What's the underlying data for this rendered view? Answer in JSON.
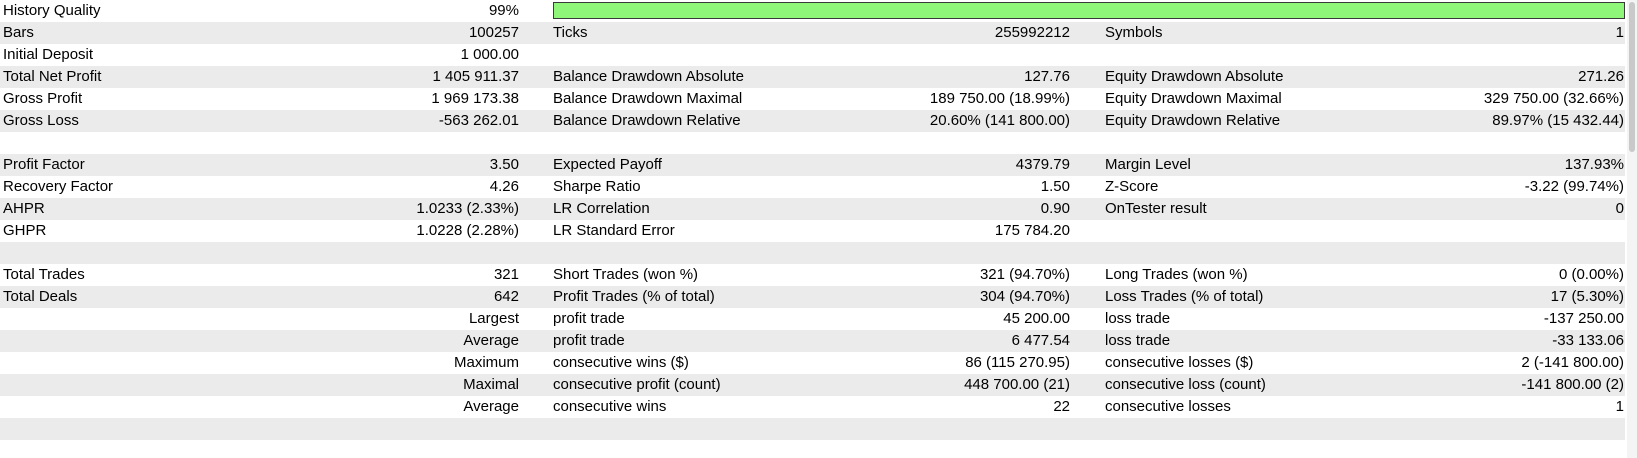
{
  "history_quality": {
    "label": "History Quality",
    "value": "99%",
    "fill_fraction": 0.99,
    "bar_color": "#8ef77a"
  },
  "rows": [
    {
      "label1": "Bars",
      "value1": "100257",
      "label2": "Ticks",
      "value2": "255992212",
      "label3": "Symbols",
      "value3": "1"
    },
    {
      "label1": "Initial Deposit",
      "value1": "1 000.00",
      "label2": "",
      "value2": "",
      "label3": "",
      "value3": ""
    },
    {
      "label1": "Total Net Profit",
      "value1": "1 405 911.37",
      "label2": "Balance Drawdown Absolute",
      "value2": "127.76",
      "label3": "Equity Drawdown Absolute",
      "value3": "271.26"
    },
    {
      "label1": "Gross Profit",
      "value1": "1 969 173.38",
      "label2": "Balance Drawdown Maximal",
      "value2": "189 750.00 (18.99%)",
      "label3": "Equity Drawdown Maximal",
      "value3": "329 750.00 (32.66%)"
    },
    {
      "label1": "Gross Loss",
      "value1": "-563 262.01",
      "label2": "Balance Drawdown Relative",
      "value2": "20.60% (141 800.00)",
      "label3": "Equity Drawdown Relative",
      "value3": "89.97% (15 432.44)"
    },
    {
      "label1": "",
      "value1": "",
      "label2": "",
      "value2": "",
      "label3": "",
      "value3": ""
    },
    {
      "label1": "Profit Factor",
      "value1": "3.50",
      "label2": "Expected Payoff",
      "value2": "4379.79",
      "label3": "Margin Level",
      "value3": "137.93%"
    },
    {
      "label1": "Recovery Factor",
      "value1": "4.26",
      "label2": "Sharpe Ratio",
      "value2": "1.50",
      "label3": "Z-Score",
      "value3": "-3.22 (99.74%)"
    },
    {
      "label1": "AHPR",
      "value1": "1.0233 (2.33%)",
      "label2": "LR Correlation",
      "value2": "0.90",
      "label3": "OnTester result",
      "value3": "0"
    },
    {
      "label1": "GHPR",
      "value1": "1.0228 (2.28%)",
      "label2": "LR Standard Error",
      "value2": "175 784.20",
      "label3": "",
      "value3": ""
    },
    {
      "label1": "",
      "value1": "",
      "label2": "",
      "value2": "",
      "label3": "",
      "value3": ""
    },
    {
      "label1": "Total Trades",
      "value1": "321",
      "label2": "Short Trades (won %)",
      "value2": "321 (94.70%)",
      "label3": "Long Trades (won %)",
      "value3": "0 (0.00%)"
    },
    {
      "label1": "Total Deals",
      "value1": "642",
      "label2": "Profit Trades (% of total)",
      "value2": "304 (94.70%)",
      "label3": "Loss Trades (% of total)",
      "value3": "17 (5.30%)"
    },
    {
      "label1": "",
      "value1": "Largest",
      "label2": "profit trade",
      "value2": "45 200.00",
      "label3": "loss trade",
      "value3": "-137 250.00"
    },
    {
      "label1": "",
      "value1": "Average",
      "label2": "profit trade",
      "value2": "6 477.54",
      "label3": "loss trade",
      "value3": "-33 133.06"
    },
    {
      "label1": "",
      "value1": "Maximum",
      "label2": "consecutive wins ($)",
      "value2": "86 (115 270.95)",
      "label3": "consecutive losses ($)",
      "value3": "2 (-141 800.00)"
    },
    {
      "label1": "",
      "value1": "Maximal",
      "label2": "consecutive profit (count)",
      "value2": "448 700.00 (21)",
      "label3": "consecutive loss (count)",
      "value3": "-141 800.00 (2)"
    },
    {
      "label1": "",
      "value1": "Average",
      "label2": "consecutive wins",
      "value2": "22",
      "label3": "consecutive losses",
      "value3": "1"
    },
    {
      "label1": "",
      "value1": "",
      "label2": "",
      "value2": "",
      "label3": "",
      "value3": ""
    }
  ]
}
